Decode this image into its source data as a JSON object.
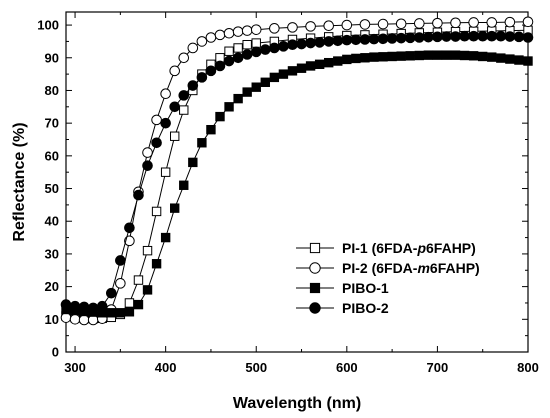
{
  "chart_data": {
    "type": "line",
    "xlabel": "Wavelength (nm)",
    "ylabel": "Reflectance (%)",
    "xlim": [
      290,
      800
    ],
    "ylim": [
      0,
      104
    ],
    "xticks": [
      300,
      400,
      500,
      600,
      700,
      800
    ],
    "yticks": [
      0,
      10,
      20,
      30,
      40,
      50,
      60,
      70,
      80,
      90,
      100
    ],
    "grid": false,
    "legend_position": "bottom-right",
    "series": [
      {
        "name_parts": [
          "PI-1 (6FDA-",
          "p",
          "6FAHP)"
        ],
        "marker": "square-open",
        "color": "#000000",
        "x": [
          290,
          300,
          310,
          320,
          330,
          340,
          350,
          360,
          370,
          380,
          390,
          400,
          410,
          420,
          430,
          440,
          450,
          460,
          470,
          480,
          490,
          500,
          520,
          540,
          560,
          580,
          600,
          620,
          640,
          660,
          680,
          700,
          720,
          740,
          760,
          780,
          800
        ],
        "y": [
          11,
          10.5,
          10.3,
          10.2,
          10.3,
          10.6,
          11.5,
          15,
          22,
          31,
          43,
          55,
          66,
          74,
          80,
          85,
          88,
          90,
          92,
          93,
          94,
          94.5,
          95,
          95.6,
          96,
          96.4,
          96.8,
          97,
          97.2,
          97.4,
          97.6,
          97.8,
          98,
          98.1,
          98.2,
          98.3,
          98.4
        ]
      },
      {
        "name_parts": [
          "PI-2 (6FDA-",
          "m",
          "6FAHP)"
        ],
        "marker": "circle-open",
        "color": "#000000",
        "x": [
          290,
          300,
          310,
          320,
          330,
          340,
          350,
          360,
          370,
          380,
          390,
          400,
          410,
          420,
          430,
          440,
          450,
          460,
          470,
          480,
          490,
          500,
          520,
          540,
          560,
          580,
          600,
          620,
          640,
          660,
          680,
          700,
          720,
          740,
          760,
          780,
          800
        ],
        "y": [
          10.5,
          10,
          9.8,
          9.8,
          10.2,
          13,
          21,
          34,
          49,
          61,
          71,
          79,
          86,
          90,
          93,
          95,
          96.2,
          97,
          97.5,
          98,
          98.3,
          98.6,
          99,
          99.3,
          99.6,
          99.8,
          100,
          100.2,
          100.3,
          100.4,
          100.5,
          100.6,
          100.7,
          100.8,
          100.8,
          100.9,
          101
        ]
      },
      {
        "name_parts": [
          "PIBO-1"
        ],
        "marker": "square-filled",
        "color": "#000000",
        "x": [
          290,
          300,
          310,
          320,
          330,
          340,
          350,
          360,
          370,
          380,
          390,
          400,
          410,
          420,
          430,
          440,
          450,
          460,
          470,
          480,
          490,
          500,
          510,
          520,
          530,
          540,
          550,
          560,
          570,
          580,
          590,
          600,
          610,
          620,
          630,
          640,
          650,
          660,
          670,
          680,
          690,
          700,
          710,
          720,
          730,
          740,
          750,
          760,
          770,
          780,
          790,
          800
        ],
        "y": [
          13,
          12.7,
          12.4,
          12.2,
          12,
          12,
          12,
          12.3,
          14.5,
          19,
          27,
          35,
          44,
          51,
          58,
          64,
          68,
          72,
          75,
          77.5,
          79.5,
          81,
          82.5,
          84,
          85,
          86,
          86.8,
          87.5,
          88,
          88.5,
          89,
          89.5,
          89.8,
          90,
          90.2,
          90.3,
          90.4,
          90.5,
          90.6,
          90.7,
          90.8,
          90.8,
          90.8,
          90.8,
          90.7,
          90.6,
          90.4,
          90.2,
          89.9,
          89.6,
          89.3,
          89
        ]
      },
      {
        "name_parts": [
          "PIBO-2"
        ],
        "marker": "circle-filled",
        "color": "#000000",
        "x": [
          290,
          300,
          310,
          320,
          330,
          340,
          350,
          360,
          370,
          380,
          390,
          400,
          410,
          420,
          430,
          440,
          450,
          460,
          470,
          480,
          490,
          500,
          510,
          520,
          530,
          540,
          550,
          560,
          570,
          580,
          590,
          600,
          610,
          620,
          630,
          640,
          650,
          660,
          670,
          680,
          690,
          700,
          710,
          720,
          730,
          740,
          750,
          760,
          770,
          780,
          790,
          800
        ],
        "y": [
          14.5,
          14,
          13.8,
          13.5,
          14,
          18,
          28,
          38,
          48,
          57,
          64,
          70,
          75,
          78.5,
          81.5,
          84,
          86,
          87.5,
          89,
          90,
          91,
          91.8,
          92.5,
          93,
          93.5,
          94,
          94.2,
          94.5,
          94.7,
          95,
          95.2,
          95.4,
          95.5,
          95.6,
          95.7,
          95.8,
          95.9,
          96,
          96.1,
          96.2,
          96.3,
          96.4,
          96.5,
          96.5,
          96.6,
          96.6,
          96.6,
          96.6,
          96.6,
          96.5,
          96.4,
          96.2
        ]
      }
    ]
  }
}
